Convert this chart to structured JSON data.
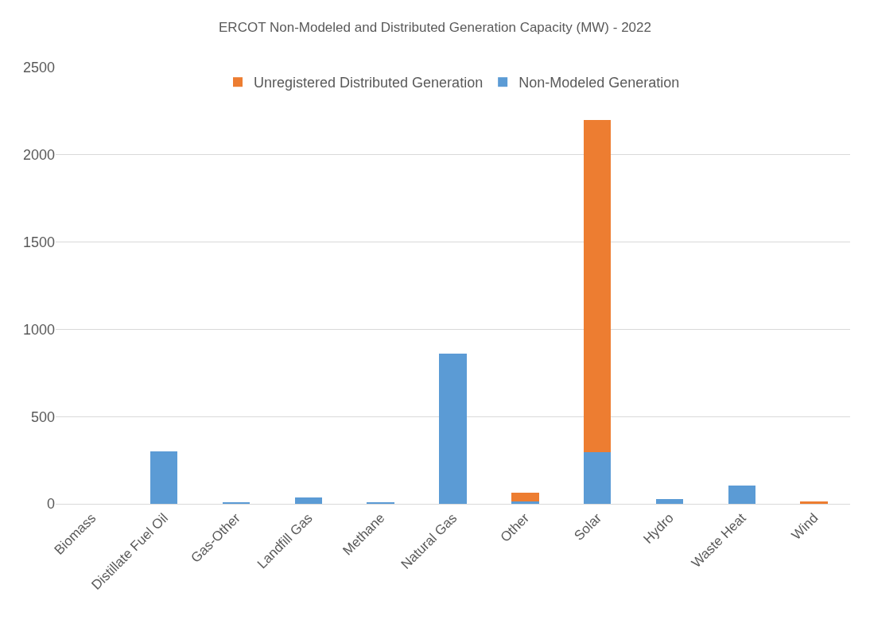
{
  "chart_data": {
    "type": "bar",
    "title": "ERCOT Non-Modeled and Distributed Generation Capacity (MW) - 2022",
    "categories": [
      "Biomass",
      "Distillate Fuel Oil",
      "Gas-Other",
      "Landfill Gas",
      "Methane",
      "Natural Gas",
      "Other",
      "Solar",
      "Hydro",
      "Waste Heat",
      "Wind"
    ],
    "series": [
      {
        "name": "Non-Modeled Generation",
        "color": "#5b9bd5",
        "values": [
          0,
          300,
          7,
          35,
          7,
          862,
          14,
          296,
          29,
          104,
          0
        ]
      },
      {
        "name": "Unregistered Distributed Generation",
        "color": "#ed7d31",
        "values": [
          0,
          0,
          0,
          0,
          0,
          0,
          51,
          1904,
          0,
          0,
          12
        ]
      }
    ],
    "stacked": true,
    "ylim": [
      0,
      2500
    ],
    "yticks": [
      0,
      500,
      1000,
      1500,
      2000,
      2500
    ],
    "grid": "y",
    "legend": "top"
  }
}
